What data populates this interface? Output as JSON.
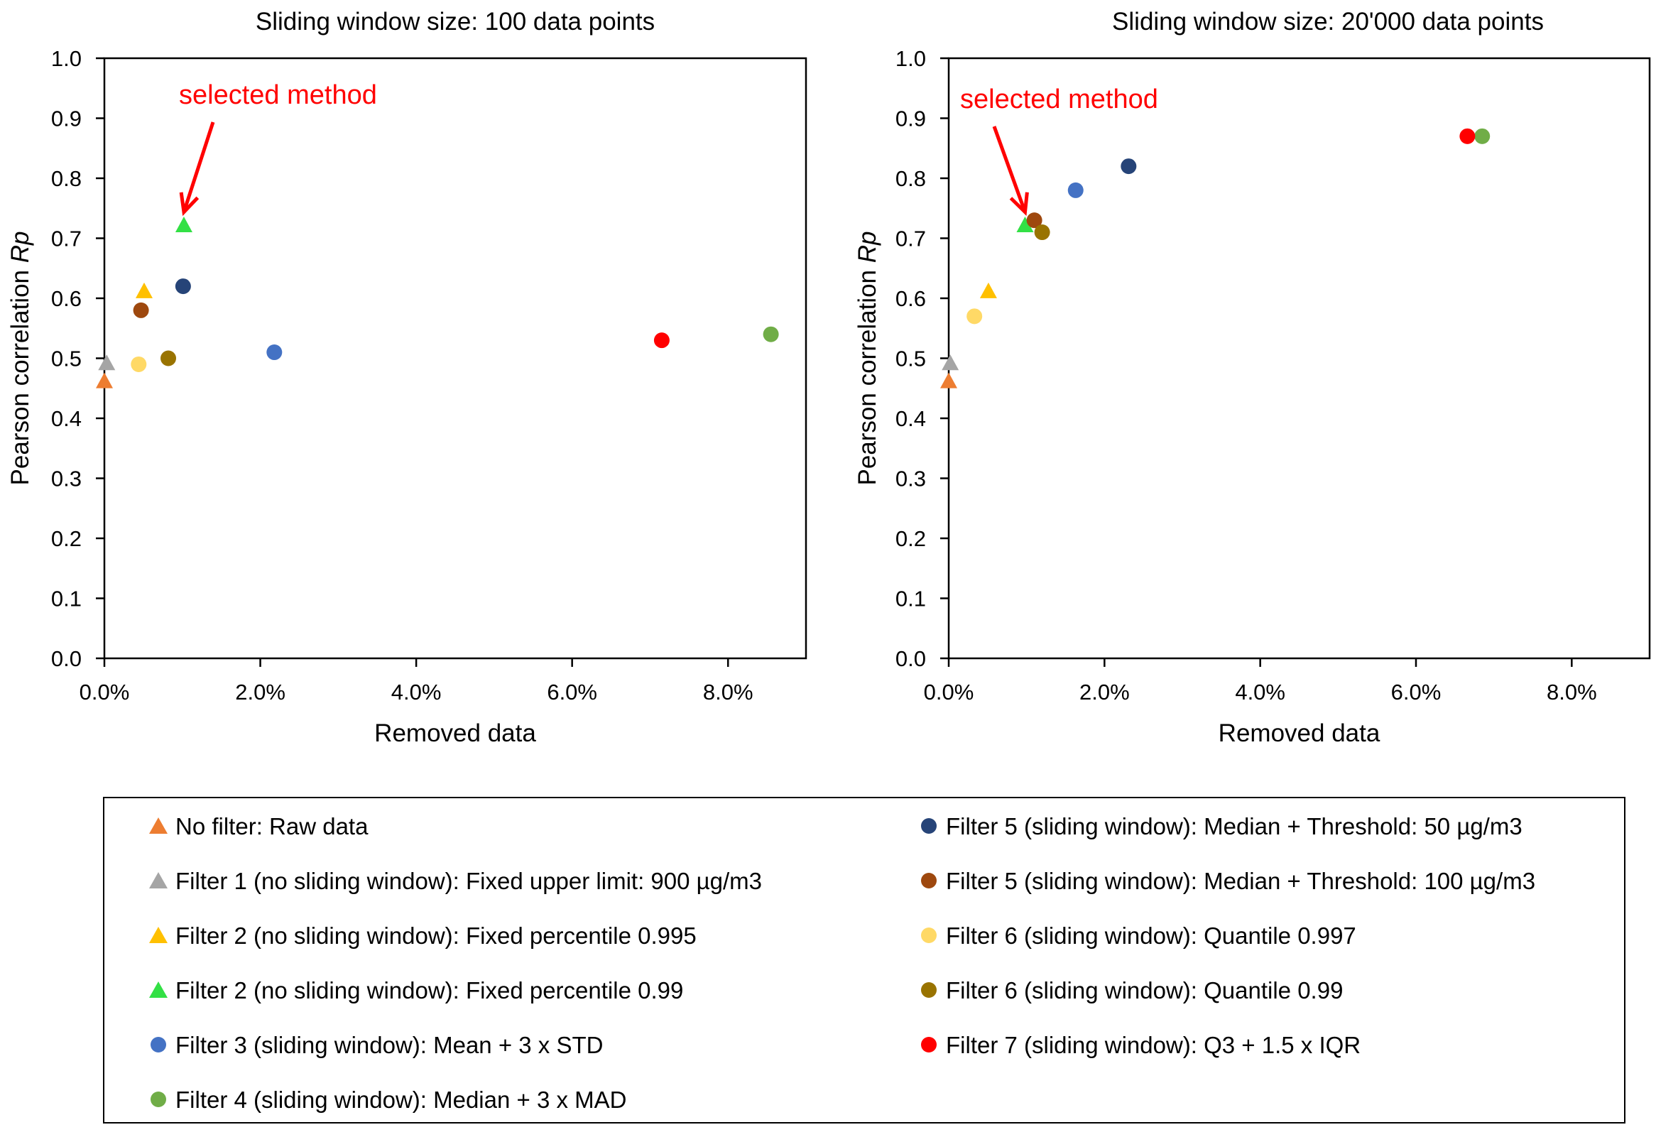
{
  "colors": {
    "no_filter": "#ED7D31",
    "filter1": "#A5A5A5",
    "filter2_995": "#FFC000",
    "filter2_99": "#33E045",
    "filter3": "#4472C4",
    "filter4": "#70AD47",
    "filter5_50": "#264478",
    "filter5_100": "#9E480E",
    "filter6_997": "#FFD966",
    "filter6_99": "#997300",
    "filter7": "#FF0000",
    "annotation": "#FF0000"
  },
  "legend": {
    "left": [
      {
        "label": "No filter: Raw data",
        "marker": "triangle",
        "color_key": "no_filter"
      },
      {
        "label": "Filter 1 (no sliding window): Fixed upper limit: 900 µg/m3",
        "marker": "triangle",
        "color_key": "filter1"
      },
      {
        "label": "Filter 2 (no sliding window): Fixed percentile 0.995",
        "marker": "triangle",
        "color_key": "filter2_995"
      },
      {
        "label": "Filter 2 (no sliding window): Fixed percentile 0.99",
        "marker": "triangle",
        "color_key": "filter2_99"
      },
      {
        "label": "Filter 3 (sliding window): Mean + 3 x STD",
        "marker": "circle",
        "color_key": "filter3"
      },
      {
        "label": "Filter 4 (sliding window): Median + 3 x MAD",
        "marker": "circle",
        "color_key": "filter4"
      }
    ],
    "right": [
      {
        "label": "Filter 5 (sliding window): Median + Threshold: 50 µg/m3",
        "marker": "circle",
        "color_key": "filter5_50"
      },
      {
        "label": "Filter 5 (sliding window): Median + Threshold: 100 µg/m3",
        "marker": "circle",
        "color_key": "filter5_100"
      },
      {
        "label": "Filter 6 (sliding window): Quantile 0.997",
        "marker": "circle",
        "color_key": "filter6_997"
      },
      {
        "label": "Filter 6 (sliding window): Quantile 0.99",
        "marker": "circle",
        "color_key": "filter6_99"
      },
      {
        "label": "Filter 7 (sliding window): Q3 + 1.5 x IQR",
        "marker": "circle",
        "color_key": "filter7"
      }
    ]
  },
  "chart_data": [
    {
      "type": "scatter",
      "title": "Sliding window size: 100 data points",
      "xlabel": "Removed data",
      "ylabel_prefix": "Pearson correlation ",
      "ylabel_italic": "Rp",
      "xlim": [
        0,
        0.09
      ],
      "ylim": [
        0,
        1.0
      ],
      "xticks": [
        0,
        0.02,
        0.04,
        0.06,
        0.08
      ],
      "xtick_labels": [
        "0.0%",
        "2.0%",
        "4.0%",
        "6.0%",
        "8.0%"
      ],
      "yticks": [
        0,
        0.1,
        0.2,
        0.3,
        0.4,
        0.5,
        0.6,
        0.7,
        0.8,
        0.9,
        1.0
      ],
      "ytick_labels": [
        "0.0",
        "0.1",
        "0.2",
        "0.3",
        "0.4",
        "0.5",
        "0.6",
        "0.7",
        "0.8",
        "0.9",
        "1.0"
      ],
      "annotation": {
        "text": "selected method",
        "x": 0.0102,
        "y": 0.72
      },
      "points": [
        {
          "x": 0.0,
          "y": 0.46,
          "marker": "triangle",
          "color_key": "no_filter",
          "series": "No filter: Raw data"
        },
        {
          "x": 0.0003,
          "y": 0.49,
          "marker": "triangle",
          "color_key": "filter1",
          "series": "Filter 1"
        },
        {
          "x": 0.0051,
          "y": 0.61,
          "marker": "triangle",
          "color_key": "filter2_995",
          "series": "Filter 2 (0.995)"
        },
        {
          "x": 0.0102,
          "y": 0.72,
          "marker": "triangle",
          "color_key": "filter2_99",
          "series": "Filter 2 (0.99)"
        },
        {
          "x": 0.0218,
          "y": 0.51,
          "marker": "circle",
          "color_key": "filter3",
          "series": "Filter 3"
        },
        {
          "x": 0.0855,
          "y": 0.54,
          "marker": "circle",
          "color_key": "filter4",
          "series": "Filter 4"
        },
        {
          "x": 0.0101,
          "y": 0.62,
          "marker": "circle",
          "color_key": "filter5_50",
          "series": "Filter 5 (50)"
        },
        {
          "x": 0.0047,
          "y": 0.58,
          "marker": "circle",
          "color_key": "filter5_100",
          "series": "Filter 5 (100)"
        },
        {
          "x": 0.0044,
          "y": 0.49,
          "marker": "circle",
          "color_key": "filter6_997",
          "series": "Filter 6 (0.997)"
        },
        {
          "x": 0.0082,
          "y": 0.5,
          "marker": "circle",
          "color_key": "filter6_99",
          "series": "Filter 6 (0.99)"
        },
        {
          "x": 0.0715,
          "y": 0.53,
          "marker": "circle",
          "color_key": "filter7",
          "series": "Filter 7"
        }
      ]
    },
    {
      "type": "scatter",
      "title": "Sliding window size: 20'000 data points",
      "xlabel": "Removed data",
      "ylabel_prefix": "Pearson correlation ",
      "ylabel_italic": "Rp",
      "xlim": [
        0,
        0.09
      ],
      "ylim": [
        0,
        1.0
      ],
      "xticks": [
        0,
        0.02,
        0.04,
        0.06,
        0.08
      ],
      "xtick_labels": [
        "0.0%",
        "2.0%",
        "4.0%",
        "6.0%",
        "8.0%"
      ],
      "yticks": [
        0,
        0.1,
        0.2,
        0.3,
        0.4,
        0.5,
        0.6,
        0.7,
        0.8,
        0.9,
        1.0
      ],
      "ytick_labels": [
        "0.0",
        "0.1",
        "0.2",
        "0.3",
        "0.4",
        "0.5",
        "0.6",
        "0.7",
        "0.8",
        "0.9",
        "1.0"
      ],
      "annotation": {
        "text": "selected method",
        "x": 0.0098,
        "y": 0.72
      },
      "points": [
        {
          "x": 0.0,
          "y": 0.46,
          "marker": "triangle",
          "color_key": "no_filter",
          "series": "No filter: Raw data"
        },
        {
          "x": 0.0002,
          "y": 0.49,
          "marker": "triangle",
          "color_key": "filter1",
          "series": "Filter 1"
        },
        {
          "x": 0.0051,
          "y": 0.61,
          "marker": "triangle",
          "color_key": "filter2_995",
          "series": "Filter 2 (0.995)"
        },
        {
          "x": 0.0098,
          "y": 0.72,
          "marker": "triangle",
          "color_key": "filter2_99",
          "series": "Filter 2 (0.99)"
        },
        {
          "x": 0.0163,
          "y": 0.78,
          "marker": "circle",
          "color_key": "filter3",
          "series": "Filter 3"
        },
        {
          "x": 0.0685,
          "y": 0.87,
          "marker": "circle",
          "color_key": "filter4",
          "series": "Filter 4"
        },
        {
          "x": 0.0231,
          "y": 0.82,
          "marker": "circle",
          "color_key": "filter5_50",
          "series": "Filter 5 (50)"
        },
        {
          "x": 0.011,
          "y": 0.73,
          "marker": "circle",
          "color_key": "filter5_100",
          "series": "Filter 5 (100)"
        },
        {
          "x": 0.0033,
          "y": 0.57,
          "marker": "circle",
          "color_key": "filter6_997",
          "series": "Filter 6 (0.997)"
        },
        {
          "x": 0.012,
          "y": 0.71,
          "marker": "circle",
          "color_key": "filter6_99",
          "series": "Filter 6 (0.99)"
        },
        {
          "x": 0.0666,
          "y": 0.87,
          "marker": "circle",
          "color_key": "filter7",
          "series": "Filter 7"
        }
      ]
    }
  ]
}
